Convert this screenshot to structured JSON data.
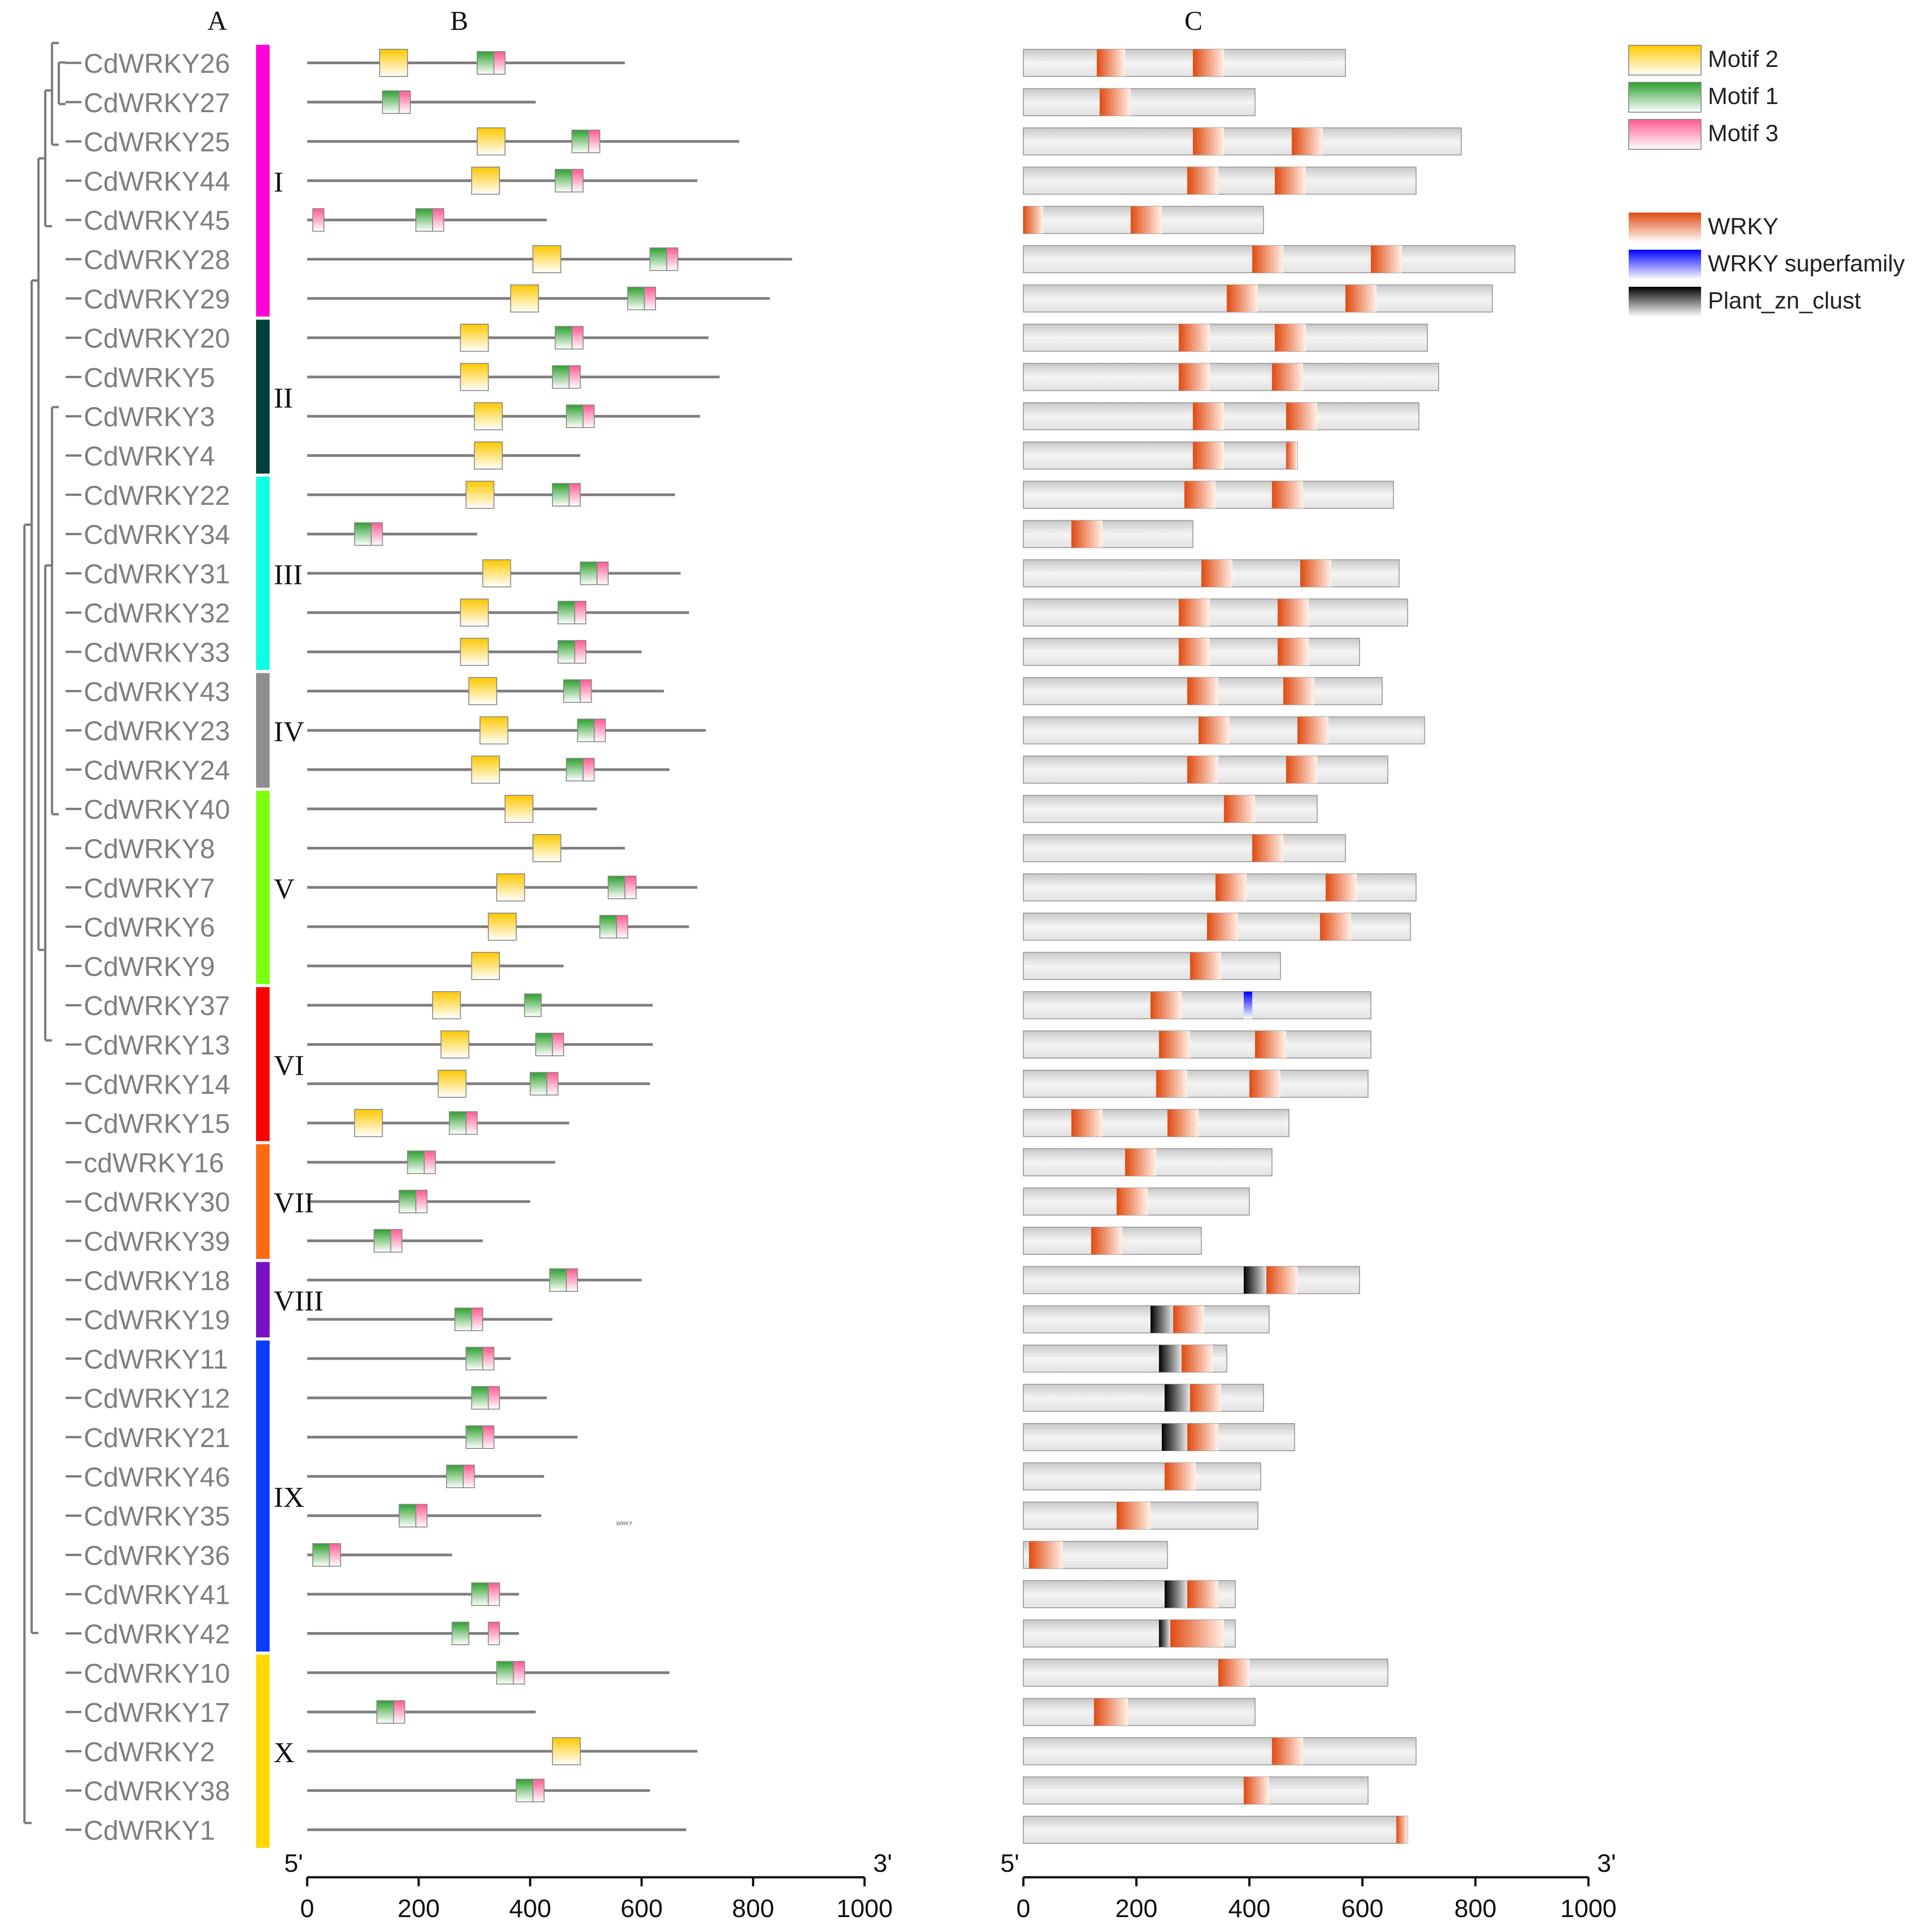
{
  "panels": {
    "a": "A",
    "b": "B",
    "c": "C"
  },
  "genes": [
    "CdWRKY26",
    "CdWRKY27",
    "CdWRKY25",
    "CdWRKY44",
    "CdWRKY45",
    "CdWRKY28",
    "CdWRKY29",
    "CdWRKY20",
    "CdWRKY5",
    "CdWRKY3",
    "CdWRKY4",
    "CdWRKY22",
    "CdWRKY34",
    "CdWRKY31",
    "CdWRKY32",
    "CdWRKY33",
    "CdWRKY43",
    "CdWRKY23",
    "CdWRKY24",
    "CdWRKY40",
    "CdWRKY8",
    "CdWRKY7",
    "CdWRKY6",
    "CdWRKY9",
    "CdWRKY37",
    "CdWRKY13",
    "CdWRKY14",
    "CdWRKY15",
    "cdWRKY16",
    "CdWRKY30",
    "CdWRKY39",
    "CdWRKY18",
    "CdWRKY19",
    "CdWRKY11",
    "CdWRKY12",
    "CdWRKY21",
    "CdWRKY46",
    "CdWRKY35",
    "CdWRKY36",
    "CdWRKY41",
    "CdWRKY42",
    "CdWRKY10",
    "CdWRKY17",
    "CdWRKY2",
    "CdWRKY38",
    "CdWRKY1"
  ],
  "groups": [
    {
      "label": "I",
      "first": 0,
      "last": 6,
      "color": "#ff00d8"
    },
    {
      "label": "II",
      "first": 7,
      "last": 10,
      "color": "#00403a"
    },
    {
      "label": "III",
      "first": 11,
      "last": 15,
      "color": "#10ffe4"
    },
    {
      "label": "IV",
      "first": 16,
      "last": 18,
      "color": "#8e8e8e"
    },
    {
      "label": "V",
      "first": 19,
      "last": 23,
      "color": "#7cff10"
    },
    {
      "label": "VI",
      "first": 24,
      "last": 27,
      "color": "#ff0000"
    },
    {
      "label": "VII",
      "first": 28,
      "last": 30,
      "color": "#ff6a10"
    },
    {
      "label": "VIII",
      "first": 31,
      "last": 32,
      "color": "#7a10c4"
    },
    {
      "label": "IX",
      "first": 33,
      "last": 40,
      "color": "#0a3cff"
    },
    {
      "label": "X",
      "first": 41,
      "last": 45,
      "color": "#ffd800"
    }
  ],
  "legend": {
    "motif": [
      {
        "label": "Motif 2",
        "color": "#ffd000"
      },
      {
        "label": "Motif 1",
        "color": "#3cb83c"
      },
      {
        "label": "Motif 3",
        "color": "#ff6fa0"
      }
    ],
    "domain": [
      {
        "label": "WRKY",
        "color": "#e8501e"
      },
      {
        "label": "WRKY superfamily",
        "color": "#0000ff"
      },
      {
        "label": "Plant_zn_clust",
        "color": "#000000"
      }
    ]
  },
  "axis": {
    "ticks": [
      0,
      200,
      400,
      600,
      800,
      1000
    ],
    "five_prime": "5'",
    "three_prime": "3'"
  },
  "tiny_note": "WRKY",
  "motif_tracks": [
    {
      "len": 570,
      "motifs": [
        [
          130,
          180,
          "m2"
        ],
        [
          305,
          335,
          "m1"
        ],
        [
          335,
          355,
          "m3"
        ]
      ]
    },
    {
      "len": 410,
      "motifs": [
        [
          135,
          165,
          "m1"
        ],
        [
          165,
          185,
          "m3"
        ]
      ]
    },
    {
      "len": 775,
      "motifs": [
        [
          305,
          355,
          "m2"
        ],
        [
          475,
          505,
          "m1"
        ],
        [
          505,
          525,
          "m3"
        ]
      ]
    },
    {
      "len": 700,
      "motifs": [
        [
          295,
          345,
          "m2"
        ],
        [
          445,
          475,
          "m1"
        ],
        [
          475,
          495,
          "m3"
        ]
      ]
    },
    {
      "len": 430,
      "motifs": [
        [
          10,
          30,
          "m3"
        ],
        [
          195,
          225,
          "m1"
        ],
        [
          225,
          245,
          "m3"
        ]
      ]
    },
    {
      "len": 870,
      "motifs": [
        [
          405,
          455,
          "m2"
        ],
        [
          615,
          645,
          "m1"
        ],
        [
          645,
          665,
          "m3"
        ]
      ]
    },
    {
      "len": 830,
      "motifs": [
        [
          365,
          415,
          "m2"
        ],
        [
          575,
          605,
          "m1"
        ],
        [
          605,
          625,
          "m3"
        ]
      ]
    },
    {
      "len": 720,
      "motifs": [
        [
          275,
          325,
          "m2"
        ],
        [
          445,
          475,
          "m1"
        ],
        [
          475,
          495,
          "m3"
        ]
      ]
    },
    {
      "len": 740,
      "motifs": [
        [
          275,
          325,
          "m2"
        ],
        [
          440,
          470,
          "m1"
        ],
        [
          470,
          490,
          "m3"
        ]
      ]
    },
    {
      "len": 705,
      "motifs": [
        [
          300,
          350,
          "m2"
        ],
        [
          465,
          495,
          "m1"
        ],
        [
          495,
          515,
          "m3"
        ]
      ]
    },
    {
      "len": 490,
      "motifs": [
        [
          300,
          350,
          "m2"
        ]
      ]
    },
    {
      "len": 660,
      "motifs": [
        [
          285,
          335,
          "m2"
        ],
        [
          440,
          470,
          "m1"
        ],
        [
          470,
          490,
          "m3"
        ]
      ]
    },
    {
      "len": 305,
      "motifs": [
        [
          85,
          115,
          "m1"
        ],
        [
          115,
          135,
          "m3"
        ]
      ]
    },
    {
      "len": 670,
      "motifs": [
        [
          315,
          365,
          "m2"
        ],
        [
          490,
          520,
          "m1"
        ],
        [
          520,
          540,
          "m3"
        ]
      ]
    },
    {
      "len": 685,
      "motifs": [
        [
          275,
          325,
          "m2"
        ],
        [
          450,
          480,
          "m1"
        ],
        [
          480,
          500,
          "m3"
        ]
      ]
    },
    {
      "len": 600,
      "motifs": [
        [
          275,
          325,
          "m2"
        ],
        [
          450,
          480,
          "m1"
        ],
        [
          480,
          500,
          "m3"
        ]
      ]
    },
    {
      "len": 640,
      "motifs": [
        [
          290,
          340,
          "m2"
        ],
        [
          460,
          490,
          "m1"
        ],
        [
          490,
          510,
          "m3"
        ]
      ]
    },
    {
      "len": 715,
      "motifs": [
        [
          310,
          360,
          "m2"
        ],
        [
          485,
          515,
          "m1"
        ],
        [
          515,
          535,
          "m3"
        ]
      ]
    },
    {
      "len": 650,
      "motifs": [
        [
          295,
          345,
          "m2"
        ],
        [
          465,
          495,
          "m1"
        ],
        [
          495,
          515,
          "m3"
        ]
      ]
    },
    {
      "len": 520,
      "motifs": [
        [
          355,
          405,
          "m2"
        ]
      ]
    },
    {
      "len": 570,
      "motifs": [
        [
          405,
          455,
          "m2"
        ]
      ]
    },
    {
      "len": 700,
      "motifs": [
        [
          340,
          390,
          "m2"
        ],
        [
          540,
          570,
          "m1"
        ],
        [
          570,
          590,
          "m3"
        ]
      ]
    },
    {
      "len": 685,
      "motifs": [
        [
          325,
          375,
          "m2"
        ],
        [
          525,
          555,
          "m1"
        ],
        [
          555,
          575,
          "m3"
        ]
      ]
    },
    {
      "len": 460,
      "motifs": [
        [
          295,
          345,
          "m2"
        ]
      ]
    },
    {
      "len": 620,
      "motifs": [
        [
          225,
          275,
          "m2"
        ],
        [
          390,
          420,
          "m1"
        ]
      ]
    },
    {
      "len": 620,
      "motifs": [
        [
          240,
          290,
          "m2"
        ],
        [
          410,
          440,
          "m1"
        ],
        [
          440,
          460,
          "m3"
        ]
      ]
    },
    {
      "len": 615,
      "motifs": [
        [
          235,
          285,
          "m2"
        ],
        [
          400,
          430,
          "m1"
        ],
        [
          430,
          450,
          "m3"
        ]
      ]
    },
    {
      "len": 470,
      "motifs": [
        [
          85,
          135,
          "m2"
        ],
        [
          255,
          285,
          "m1"
        ],
        [
          285,
          305,
          "m3"
        ]
      ]
    },
    {
      "len": 445,
      "motifs": [
        [
          180,
          210,
          "m1"
        ],
        [
          210,
          230,
          "m3"
        ]
      ]
    },
    {
      "len": 400,
      "motifs": [
        [
          165,
          195,
          "m1"
        ],
        [
          195,
          215,
          "m3"
        ]
      ]
    },
    {
      "len": 315,
      "motifs": [
        [
          120,
          150,
          "m1"
        ],
        [
          150,
          170,
          "m3"
        ]
      ]
    },
    {
      "len": 600,
      "motifs": [
        [
          435,
          465,
          "m1"
        ],
        [
          465,
          485,
          "m3"
        ]
      ]
    },
    {
      "len": 440,
      "motifs": [
        [
          265,
          295,
          "m1"
        ],
        [
          295,
          315,
          "m3"
        ]
      ]
    },
    {
      "len": 365,
      "motifs": [
        [
          285,
          315,
          "m1"
        ],
        [
          315,
          335,
          "m3"
        ]
      ]
    },
    {
      "len": 430,
      "motifs": [
        [
          295,
          325,
          "m1"
        ],
        [
          325,
          345,
          "m3"
        ]
      ]
    },
    {
      "len": 485,
      "motifs": [
        [
          285,
          315,
          "m1"
        ],
        [
          315,
          335,
          "m3"
        ]
      ]
    },
    {
      "len": 425,
      "motifs": [
        [
          250,
          280,
          "m1"
        ],
        [
          280,
          300,
          "m3"
        ]
      ]
    },
    {
      "len": 420,
      "motifs": [
        [
          165,
          195,
          "m1"
        ],
        [
          195,
          215,
          "m3"
        ]
      ]
    },
    {
      "len": 260,
      "motifs": [
        [
          10,
          40,
          "m1"
        ],
        [
          40,
          60,
          "m3"
        ]
      ]
    },
    {
      "len": 380,
      "motifs": [
        [
          295,
          325,
          "m1"
        ],
        [
          325,
          345,
          "m3"
        ]
      ]
    },
    {
      "len": 380,
      "motifs": [
        [
          260,
          290,
          "m1"
        ],
        [
          325,
          345,
          "m3"
        ]
      ]
    },
    {
      "len": 650,
      "motifs": [
        [
          340,
          370,
          "m1"
        ],
        [
          370,
          390,
          "m3"
        ]
      ]
    },
    {
      "len": 410,
      "motifs": [
        [
          125,
          155,
          "m1"
        ],
        [
          155,
          175,
          "m3"
        ]
      ]
    },
    {
      "len": 700,
      "motifs": [
        [
          440,
          490,
          "m2"
        ]
      ]
    },
    {
      "len": 615,
      "motifs": [
        [
          375,
          405,
          "m1"
        ],
        [
          405,
          425,
          "m3"
        ]
      ]
    },
    {
      "len": 680,
      "motifs": []
    }
  ],
  "domain_tracks": [
    {
      "len": 570,
      "domains": [
        [
          130,
          180,
          "w"
        ],
        [
          300,
          355,
          "w"
        ]
      ]
    },
    {
      "len": 410,
      "domains": [
        [
          135,
          190,
          "w"
        ]
      ]
    },
    {
      "len": 775,
      "domains": [
        [
          300,
          355,
          "w"
        ],
        [
          475,
          530,
          "w"
        ]
      ]
    },
    {
      "len": 695,
      "domains": [
        [
          290,
          345,
          "w"
        ],
        [
          445,
          500,
          "w"
        ]
      ]
    },
    {
      "len": 425,
      "domains": [
        [
          0,
          35,
          "w"
        ],
        [
          190,
          245,
          "w"
        ]
      ]
    },
    {
      "len": 870,
      "domains": [
        [
          405,
          460,
          "w"
        ],
        [
          615,
          670,
          "w"
        ]
      ]
    },
    {
      "len": 830,
      "domains": [
        [
          360,
          415,
          "w"
        ],
        [
          570,
          625,
          "w"
        ]
      ]
    },
    {
      "len": 715,
      "domains": [
        [
          275,
          330,
          "w"
        ],
        [
          445,
          500,
          "w"
        ]
      ]
    },
    {
      "len": 735,
      "domains": [
        [
          275,
          330,
          "w"
        ],
        [
          440,
          495,
          "w"
        ]
      ]
    },
    {
      "len": 700,
      "domains": [
        [
          300,
          355,
          "w"
        ],
        [
          465,
          520,
          "w"
        ]
      ]
    },
    {
      "len": 485,
      "domains": [
        [
          300,
          355,
          "w"
        ],
        [
          465,
          485,
          "w"
        ]
      ]
    },
    {
      "len": 655,
      "domains": [
        [
          285,
          340,
          "w"
        ],
        [
          440,
          495,
          "w"
        ]
      ]
    },
    {
      "len": 300,
      "domains": [
        [
          85,
          140,
          "w"
        ]
      ]
    },
    {
      "len": 665,
      "domains": [
        [
          315,
          370,
          "w"
        ],
        [
          490,
          545,
          "w"
        ]
      ]
    },
    {
      "len": 680,
      "domains": [
        [
          275,
          330,
          "w"
        ],
        [
          450,
          505,
          "w"
        ]
      ]
    },
    {
      "len": 595,
      "domains": [
        [
          275,
          330,
          "w"
        ],
        [
          450,
          505,
          "w"
        ]
      ]
    },
    {
      "len": 635,
      "domains": [
        [
          290,
          345,
          "w"
        ],
        [
          460,
          515,
          "w"
        ]
      ]
    },
    {
      "len": 710,
      "domains": [
        [
          310,
          365,
          "w"
        ],
        [
          485,
          540,
          "w"
        ]
      ]
    },
    {
      "len": 645,
      "domains": [
        [
          290,
          345,
          "w"
        ],
        [
          465,
          520,
          "w"
        ]
      ]
    },
    {
      "len": 520,
      "domains": [
        [
          355,
          410,
          "w"
        ]
      ]
    },
    {
      "len": 570,
      "domains": [
        [
          405,
          460,
          "w"
        ]
      ]
    },
    {
      "len": 695,
      "domains": [
        [
          340,
          395,
          "w"
        ],
        [
          535,
          590,
          "w"
        ]
      ]
    },
    {
      "len": 685,
      "domains": [
        [
          325,
          380,
          "w"
        ],
        [
          525,
          580,
          "w"
        ]
      ]
    },
    {
      "len": 455,
      "domains": [
        [
          295,
          350,
          "w"
        ]
      ]
    },
    {
      "len": 615,
      "domains": [
        [
          225,
          280,
          "w"
        ],
        [
          390,
          405,
          "s"
        ]
      ]
    },
    {
      "len": 615,
      "domains": [
        [
          240,
          295,
          "w"
        ],
        [
          410,
          465,
          "w"
        ]
      ]
    },
    {
      "len": 610,
      "domains": [
        [
          235,
          290,
          "w"
        ],
        [
          400,
          455,
          "w"
        ]
      ]
    },
    {
      "len": 470,
      "domains": [
        [
          85,
          140,
          "w"
        ],
        [
          255,
          310,
          "w"
        ]
      ]
    },
    {
      "len": 440,
      "domains": [
        [
          180,
          235,
          "w"
        ]
      ]
    },
    {
      "len": 400,
      "domains": [
        [
          165,
          220,
          "w"
        ]
      ]
    },
    {
      "len": 315,
      "domains": [
        [
          120,
          175,
          "w"
        ]
      ]
    },
    {
      "len": 595,
      "domains": [
        [
          390,
          430,
          "z"
        ],
        [
          430,
          485,
          "w"
        ]
      ]
    },
    {
      "len": 435,
      "domains": [
        [
          225,
          265,
          "z"
        ],
        [
          265,
          320,
          "w"
        ]
      ]
    },
    {
      "len": 360,
      "domains": [
        [
          240,
          280,
          "z"
        ],
        [
          280,
          335,
          "w"
        ]
      ]
    },
    {
      "len": 425,
      "domains": [
        [
          250,
          295,
          "z"
        ],
        [
          295,
          350,
          "w"
        ]
      ]
    },
    {
      "len": 480,
      "domains": [
        [
          245,
          290,
          "z"
        ],
        [
          290,
          345,
          "w"
        ]
      ]
    },
    {
      "len": 420,
      "domains": [
        [
          250,
          305,
          "w"
        ]
      ]
    },
    {
      "len": 415,
      "domains": [
        [
          165,
          225,
          "w"
        ]
      ]
    },
    {
      "len": 255,
      "domains": [
        [
          10,
          70,
          "w"
        ]
      ]
    },
    {
      "len": 375,
      "domains": [
        [
          250,
          290,
          "z"
        ],
        [
          290,
          345,
          "w"
        ]
      ]
    },
    {
      "len": 375,
      "domains": [
        [
          240,
          260,
          "z"
        ],
        [
          260,
          355,
          "w"
        ]
      ]
    },
    {
      "len": 645,
      "domains": [
        [
          345,
          400,
          "w"
        ]
      ]
    },
    {
      "len": 410,
      "domains": [
        [
          125,
          185,
          "w"
        ]
      ]
    },
    {
      "len": 695,
      "domains": [
        [
          440,
          495,
          "w"
        ]
      ]
    },
    {
      "len": 610,
      "domains": [
        [
          390,
          435,
          "w"
        ]
      ]
    },
    {
      "len": 680,
      "domains": [
        [
          660,
          680,
          "w"
        ]
      ]
    }
  ]
}
